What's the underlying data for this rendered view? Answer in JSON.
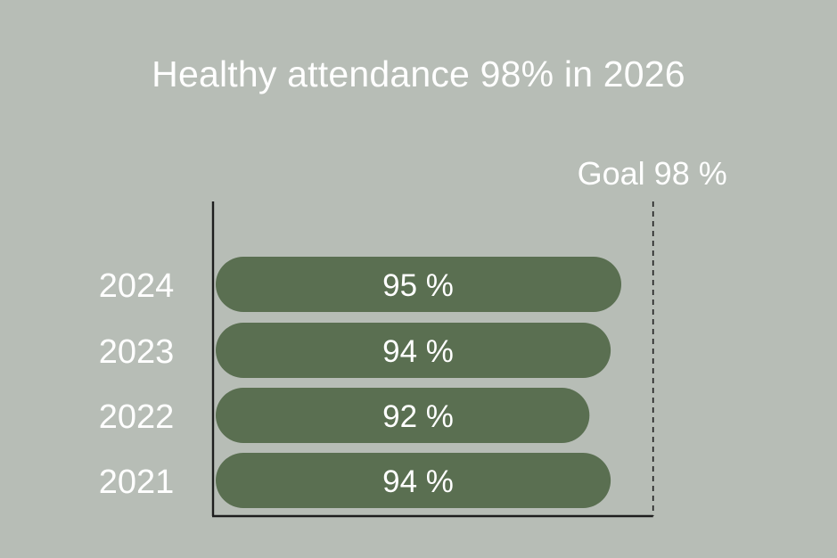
{
  "chart_data": {
    "type": "bar",
    "orientation": "horizontal",
    "title": "Healthy attendance 98% in 2026",
    "categories": [
      "2024",
      "2023",
      "2022",
      "2021"
    ],
    "values": [
      95,
      94,
      92,
      94
    ],
    "value_labels": [
      "95 %",
      "94 %",
      "92 %",
      "94 %"
    ],
    "goal": {
      "value": 98,
      "label": "Goal 98 %",
      "line_style": "dashed"
    },
    "xlabel": "",
    "ylabel": "",
    "grid": false,
    "legend": "none"
  },
  "colors": {
    "background": "#b7bdb6",
    "bar": "#5a6f51",
    "axis": "#1e1e1e",
    "text": "#ffffff"
  }
}
